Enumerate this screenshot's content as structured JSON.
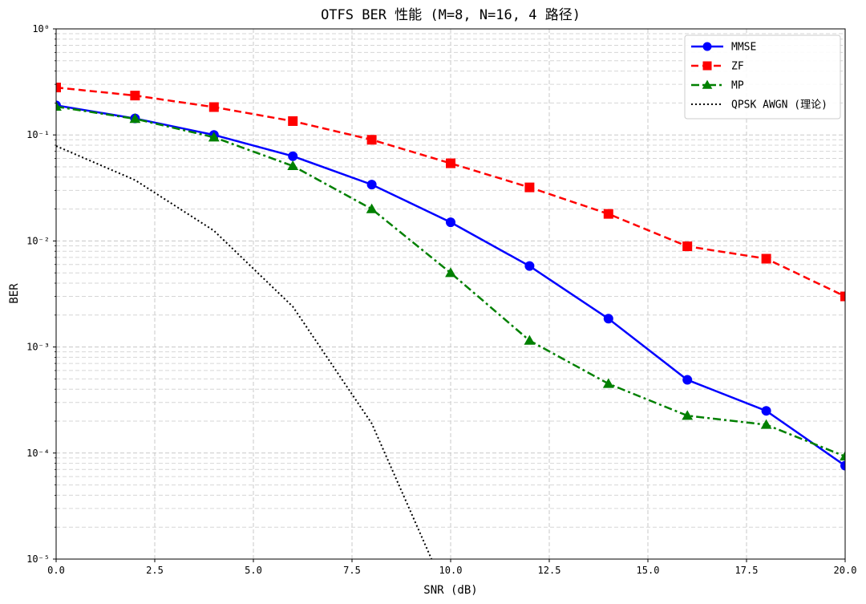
{
  "chart_data": {
    "type": "line",
    "title": "OTFS BER 性能 (M=8, N=16, 4 路径)",
    "xlabel": "SNR (dB)",
    "ylabel": "BER",
    "xlim": [
      0,
      20
    ],
    "ylim": [
      1e-05,
      1
    ],
    "yscale": "log",
    "grid": true,
    "legend_position": "top-right",
    "x_ticks": [
      "0.0",
      "2.5",
      "5.0",
      "7.5",
      "10.0",
      "12.5",
      "15.0",
      "17.5",
      "20.0"
    ],
    "y_ticks": [
      "10⁰",
      "10⁻¹",
      "10⁻²",
      "10⁻³",
      "10⁻⁴",
      "10⁻⁵"
    ],
    "series": [
      {
        "name": "MMSE",
        "color": "#0000ff",
        "dash": "solid",
        "marker": "circle",
        "x": [
          0,
          2,
          4,
          6,
          8,
          10,
          12,
          14,
          16,
          18,
          20
        ],
        "y": [
          0.19,
          0.143,
          0.1,
          0.063,
          0.034,
          0.015,
          0.0058,
          0.00185,
          0.00049,
          0.00025,
          7.6e-05
        ]
      },
      {
        "name": "ZF",
        "color": "#ff0000",
        "dash": "dashed",
        "marker": "square",
        "x": [
          0,
          2,
          4,
          6,
          8,
          10,
          12,
          14,
          16,
          18,
          20
        ],
        "y": [
          0.28,
          0.235,
          0.183,
          0.135,
          0.09,
          0.054,
          0.032,
          0.018,
          0.0089,
          0.0068,
          0.003
        ]
      },
      {
        "name": "MP",
        "color": "#008000",
        "dash": "dashdot",
        "marker": "triangle",
        "x": [
          0,
          2,
          4,
          6,
          8,
          10,
          12,
          14,
          16,
          18,
          20
        ],
        "y": [
          0.185,
          0.142,
          0.095,
          0.051,
          0.02,
          0.005,
          0.00115,
          0.00045,
          0.000225,
          0.000185,
          9.3e-05
        ]
      },
      {
        "name": "QPSK AWGN (理论)",
        "color": "#000000",
        "dash": "dotted",
        "marker": "none",
        "x": [
          0,
          2,
          4,
          6,
          8,
          10
        ],
        "y": [
          0.0786,
          0.0375,
          0.0125,
          0.0024,
          0.00019,
          3.9e-06
        ]
      }
    ]
  }
}
